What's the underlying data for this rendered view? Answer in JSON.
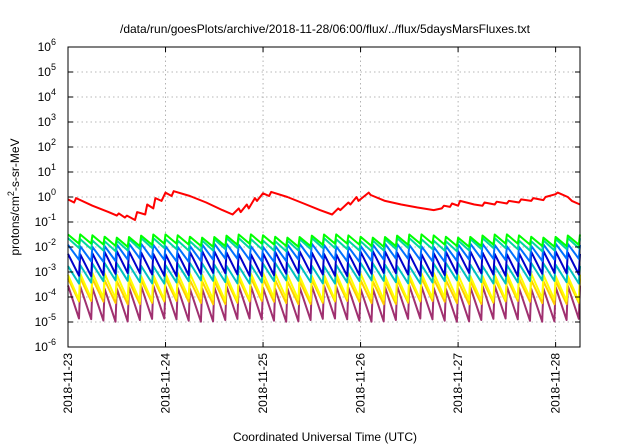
{
  "chart_data": {
    "type": "line",
    "title": "/data/run/goesPlots/archive/2018-11-28/06:00/flux/../flux/5daysMarsFluxes.txt",
    "xlabel": "Coordinated Universal Time (UTC)",
    "ylabel": "protons/cm2-s-sr-MeV",
    "ylabel_parts": {
      "pre": "protons/cm",
      "sup": "2",
      "post": "-s-sr-MeV"
    },
    "y_scale": "log",
    "ylim": [
      1e-06,
      1000000.0
    ],
    "y_ticks": [
      {
        "mant": "10",
        "exp": "6"
      },
      {
        "mant": "10",
        "exp": "5"
      },
      {
        "mant": "10",
        "exp": "4"
      },
      {
        "mant": "10",
        "exp": "3"
      },
      {
        "mant": "10",
        "exp": "2"
      },
      {
        "mant": "10",
        "exp": "1"
      },
      {
        "mant": "10",
        "exp": "0"
      },
      {
        "mant": "10",
        "exp": "-1"
      },
      {
        "mant": "10",
        "exp": "-2"
      },
      {
        "mant": "10",
        "exp": "-3"
      },
      {
        "mant": "10",
        "exp": "-4"
      },
      {
        "mant": "10",
        "exp": "-5"
      },
      {
        "mant": "10",
        "exp": "-6"
      }
    ],
    "x_range": [
      "2018-11-23T00:00",
      "2018-11-28T06:00"
    ],
    "x_ticks": [
      "2018-11-23",
      "2018-11-24",
      "2018-11-25",
      "2018-11-26",
      "2018-11-27",
      "2018-11-28"
    ],
    "grid": true,
    "legend": "none",
    "series": [
      {
        "color": "#ff0000",
        "x": [
          "2018-11-23T00:00",
          "2018-11-23T01:30",
          "2018-11-23T02:00",
          "2018-11-23T06:00",
          "2018-11-23T10:00",
          "2018-11-23T12:00",
          "2018-11-23T12:30",
          "2018-11-23T14:00",
          "2018-11-23T14:30",
          "2018-11-23T16:30",
          "2018-11-23T17:00",
          "2018-11-23T19:00",
          "2018-11-23T19:30",
          "2018-11-23T21:00",
          "2018-11-23T21:30",
          "2018-11-23T23:00",
          "2018-11-24T00:00",
          "2018-11-24T01:30",
          "2018-11-24T02:00",
          "2018-11-24T06:00",
          "2018-11-24T10:00",
          "2018-11-24T14:00",
          "2018-11-24T16:30",
          "2018-11-24T18:00",
          "2018-11-24T18:30",
          "2018-11-24T20:00",
          "2018-11-24T20:30",
          "2018-11-24T22:00",
          "2018-11-24T22:30",
          "2018-11-25T00:00",
          "2018-11-25T01:30",
          "2018-11-25T02:00",
          "2018-11-25T06:00",
          "2018-11-25T10:00",
          "2018-11-25T14:00",
          "2018-11-25T17:00",
          "2018-11-25T18:30",
          "2018-11-25T19:00",
          "2018-11-25T21:00",
          "2018-11-25T21:30",
          "2018-11-25T23:00",
          "2018-11-25T23:30",
          "2018-11-26T02:00",
          "2018-11-26T02:30",
          "2018-11-26T06:00",
          "2018-11-26T10:00",
          "2018-11-26T14:00",
          "2018-11-26T18:00",
          "2018-11-26T20:00",
          "2018-11-26T20:30",
          "2018-11-26T22:00",
          "2018-11-26T22:30",
          "2018-11-27T00:00",
          "2018-11-27T00:30",
          "2018-11-27T04:00",
          "2018-11-27T06:00",
          "2018-11-27T06:30",
          "2018-11-27T09:00",
          "2018-11-27T09:30",
          "2018-11-27T12:00",
          "2018-11-27T12:30",
          "2018-11-27T15:00",
          "2018-11-27T15:30",
          "2018-11-27T18:00",
          "2018-11-27T18:30",
          "2018-11-27T21:00",
          "2018-11-27T21:30",
          "2018-11-28T00:00",
          "2018-11-28T00:30",
          "2018-11-28T03:00",
          "2018-11-28T04:00",
          "2018-11-28T06:00"
        ],
        "y": [
          0.8,
          0.6,
          0.9,
          0.45,
          0.25,
          0.18,
          0.22,
          0.15,
          0.18,
          0.12,
          0.25,
          0.2,
          0.5,
          0.35,
          0.9,
          0.7,
          1.5,
          1.1,
          1.7,
          1.1,
          0.6,
          0.3,
          0.2,
          0.35,
          0.25,
          0.5,
          0.35,
          0.9,
          0.7,
          1.4,
          1.1,
          1.6,
          1.0,
          0.55,
          0.3,
          0.2,
          0.35,
          0.3,
          0.6,
          0.5,
          1.0,
          0.7,
          1.5,
          1.2,
          0.7,
          0.5,
          0.38,
          0.3,
          0.35,
          0.45,
          0.4,
          0.55,
          0.45,
          0.7,
          0.5,
          0.45,
          0.6,
          0.5,
          0.65,
          0.55,
          0.7,
          0.6,
          0.8,
          0.7,
          0.9,
          0.75,
          1.0,
          1.3,
          1.5,
          1.0,
          0.7,
          0.5
        ]
      },
      {
        "color": "#00ff00",
        "base": 0.012,
        "peak": 0.028,
        "period_h": 3
      },
      {
        "color": "#00d8a0",
        "base": 0.008,
        "peak": 0.02,
        "period_h": 3
      },
      {
        "color": "#0070ff",
        "base": 0.003,
        "peak": 0.012,
        "period_h": 3
      },
      {
        "color": "#0000cc",
        "base": 0.0008,
        "peak": 0.006,
        "period_h": 3
      },
      {
        "color": "#00c0c0",
        "base": 0.0004,
        "peak": 0.002,
        "period_h": 3
      },
      {
        "color": "#ffff00",
        "base": 8e-05,
        "peak": 0.0008,
        "period_h": 3
      },
      {
        "color": "#ffcc00",
        "base": 6e-05,
        "peak": 0.0005,
        "period_h": 3
      },
      {
        "color": "#a03070",
        "base": 1.2e-05,
        "peak": 0.00025,
        "period_h": 3
      }
    ]
  }
}
